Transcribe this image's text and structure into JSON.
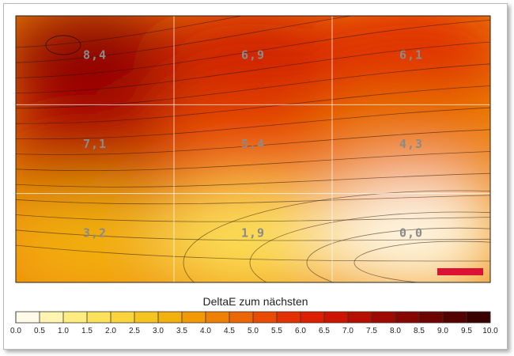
{
  "chart_data": {
    "type": "heatmap",
    "title": "",
    "grid": true,
    "rows": 3,
    "cols": 3,
    "values": [
      [
        "8,4",
        "6,9",
        "6,1"
      ],
      [
        "7,1",
        "5,4",
        "4,3"
      ],
      [
        "3,2",
        "1,9",
        "0,0"
      ]
    ],
    "numeric_values": [
      [
        8.4,
        6.9,
        6.1
      ],
      [
        7.1,
        5.4,
        4.3
      ],
      [
        3.2,
        1.9,
        0.0
      ]
    ],
    "legend": {
      "title": "DeltaE zum nächsten",
      "min": 0,
      "max": 10,
      "step": 0.5,
      "ticks": [
        "0.0",
        "0.5",
        "1.0",
        "1.5",
        "2.0",
        "2.5",
        "3.0",
        "3.5",
        "4.0",
        "4.5",
        "5.0",
        "5.5",
        "6.0",
        "6.5",
        "7.0",
        "7.5",
        "8.0",
        "8.5",
        "9.0",
        "9.5",
        "10.0"
      ],
      "colors": [
        "#fffbe8",
        "#fff4b0",
        "#ffec80",
        "#fce15a",
        "#f9d43c",
        "#f6c421",
        "#f3b10f",
        "#f19a06",
        "#ee8104",
        "#eb6703",
        "#e94b02",
        "#e43101",
        "#dd1f00",
        "#cc1400",
        "#b60e00",
        "#9f0a00",
        "#870600",
        "#6e0400",
        "#540200",
        "#3a0000"
      ]
    },
    "reference_marker_color": "#dd1133"
  }
}
